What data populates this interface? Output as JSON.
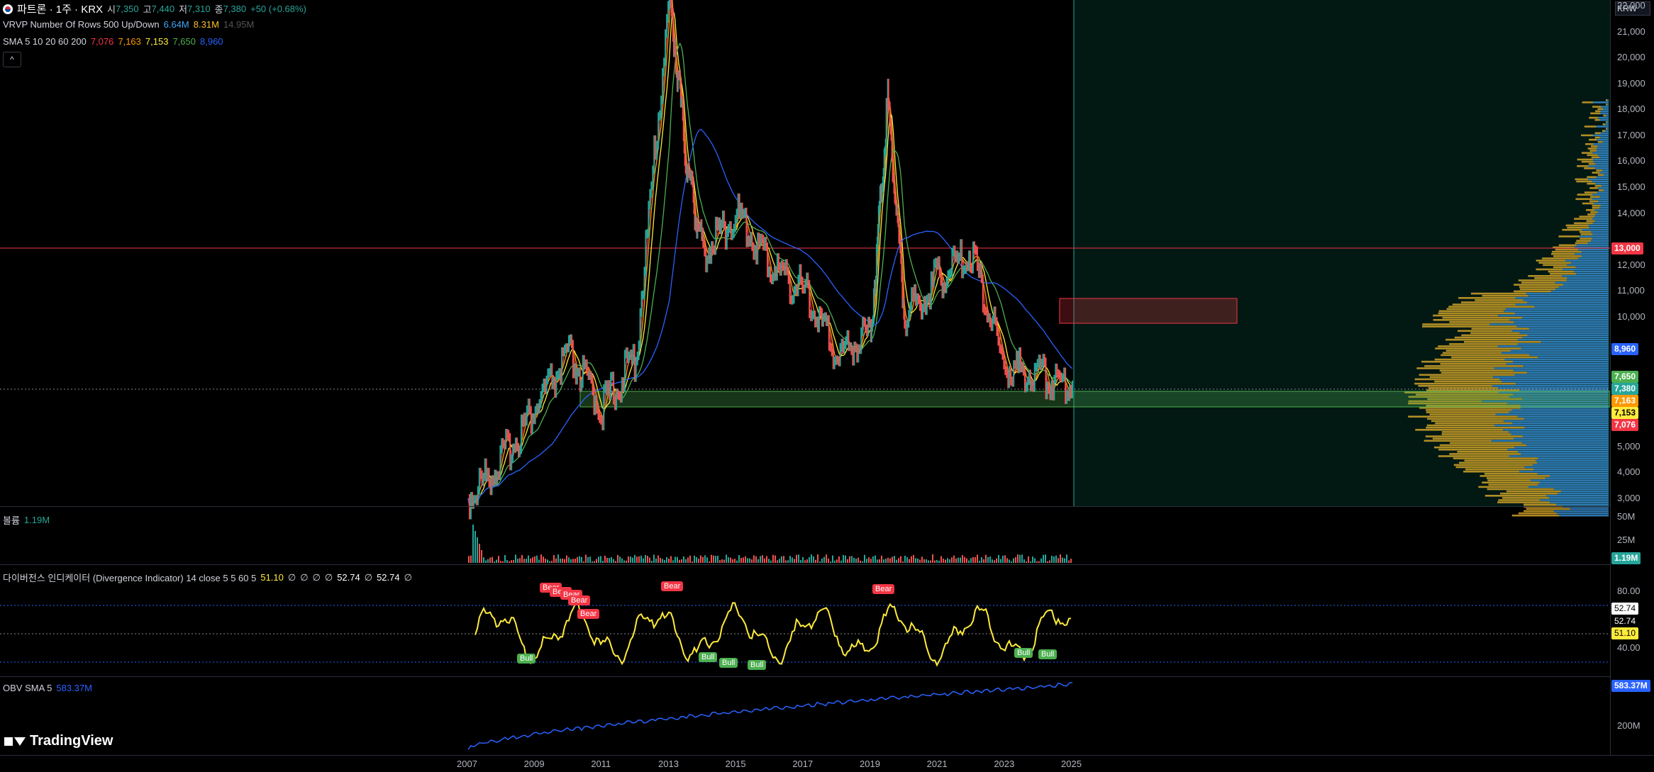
{
  "header": {
    "flag_icon": "korea-flag-icon",
    "symbol": "파트론 · 1주 · KRX",
    "open_label": "시",
    "open": "7,350",
    "high_label": "고",
    "high": "7,440",
    "low_label": "저",
    "low": "7,310",
    "close_label": "종",
    "close": "7,380",
    "change": "+50 (+0.68%)"
  },
  "vrvp": {
    "label": "VRVP Number Of Rows 500 Up/Down",
    "up": "6.64M",
    "down": "8.31M",
    "total": "14.95M"
  },
  "sma": {
    "label": "SMA 5 10 20 60 200",
    "v5": "7,076",
    "v10": "7,163",
    "v20": "7,153",
    "v60": "7,650",
    "v200": "8,960"
  },
  "collapse_icon": "^",
  "volume": {
    "label": "볼륨",
    "value": "1.19M",
    "ticks": [
      "50M",
      "25M"
    ],
    "tag": "1.19M"
  },
  "divergence": {
    "label": "다이버전스 인디케이터 (Divergence Indicator) 14 close 5 5 60 5",
    "v1": "51.10",
    "v2": "∅",
    "v3": "∅",
    "v4": "∅",
    "v5": "∅",
    "v6": "52.74",
    "v7": "∅",
    "v8": "52.74",
    "v9": "∅",
    "ticks": [
      "80.00",
      "40.00"
    ],
    "tags": [
      "52.74",
      "52.74",
      "51.10"
    ],
    "bear_label": "Bear",
    "bull_label": "Bull"
  },
  "obv": {
    "label": "OBV SMA 5",
    "value": "583.37M",
    "tick": "200M",
    "tag": "583.37M"
  },
  "price_axis": {
    "currency": "KRW",
    "ticks": [
      "22,000",
      "21,000",
      "20,000",
      "19,000",
      "18,000",
      "17,000",
      "16,000",
      "15,000",
      "14,000",
      "12,000",
      "11,000",
      "10,000",
      "5,000",
      "4,000",
      "3,000"
    ],
    "tags": {
      "h_line": "13,000",
      "sma200": "8,960",
      "sma60": "7,650",
      "close": "7,380",
      "sma10": "7,163",
      "sma20": "7,153",
      "sma5": "7,076"
    }
  },
  "time_axis": [
    "2007",
    "2009",
    "2011",
    "2013",
    "2015",
    "2017",
    "2019",
    "2021",
    "2023",
    "2025"
  ],
  "brand": "TradingView",
  "colors": {
    "up": "#26a69a",
    "down": "#ef5350",
    "sma5": "#f23645",
    "sma10": "#ff9800",
    "sma20": "#ffeb3b",
    "sma60": "#4caf50",
    "sma200": "#2962ff",
    "indicator": "#ffeb3b",
    "obv": "#2962ff",
    "hline": "#f23645"
  },
  "chart_data": {
    "type": "line",
    "title": "파트론 · 1주 · KRX",
    "x": [
      2007,
      2008,
      2009,
      2010,
      2011,
      2012,
      2013,
      2013.5,
      2014,
      2015,
      2016,
      2017,
      2018,
      2019,
      2019.5,
      2020,
      2021,
      2022,
      2023,
      2024,
      2025
    ],
    "series": [
      {
        "name": "Price",
        "values": [
          3000,
          4500,
          6500,
          8500,
          6500,
          8500,
          22500,
          16000,
          12500,
          14000,
          12000,
          11000,
          8500,
          9500,
          18500,
          10000,
          11500,
          12500,
          8000,
          7800,
          7380
        ]
      }
    ],
    "ylim": [
      3000,
      22500
    ]
  }
}
